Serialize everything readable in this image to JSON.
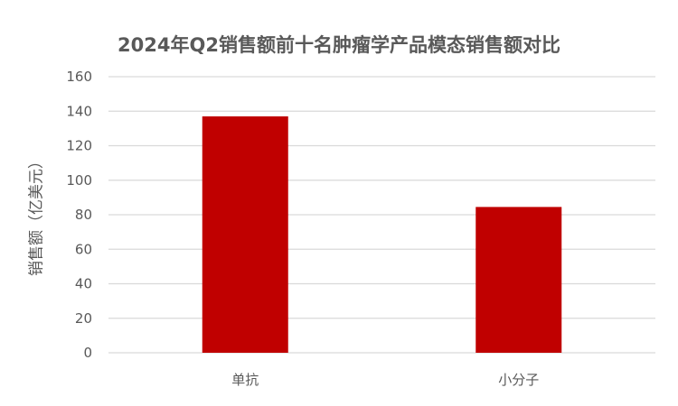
{
  "chart_data": {
    "type": "bar",
    "title": "2024年Q2销售额前十名肿瘤学产品模态销售额对比",
    "xlabel": "",
    "ylabel": "销售额（亿美元）",
    "categories": [
      "单抗",
      "小分子"
    ],
    "values": [
      137,
      84.5
    ],
    "ylim": [
      0,
      160
    ],
    "yticks": [
      0,
      20,
      40,
      60,
      80,
      100,
      120,
      140,
      160
    ],
    "grid": true,
    "bar_color": "#C00000",
    "grid_color": "#D9D9D9"
  }
}
